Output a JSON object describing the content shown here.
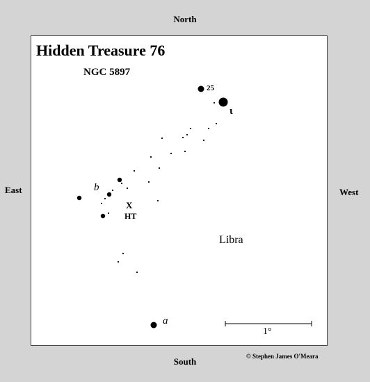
{
  "directions": {
    "north": "North",
    "south": "South",
    "east": "East",
    "west": "West"
  },
  "title": "Hidden Treasure 76",
  "subtitle": "NGC 5897",
  "labels": {
    "star_25": "25",
    "iota": "ι",
    "b": "b",
    "target_marker": "X",
    "ht": "HT",
    "constellation": "Libra",
    "a": "a"
  },
  "scale": {
    "label": "1°"
  },
  "copyright": "© Stephen James O'Meara",
  "colors": {
    "background": "#d4d4d4",
    "map": "#ffffff",
    "ink": "#000000"
  }
}
